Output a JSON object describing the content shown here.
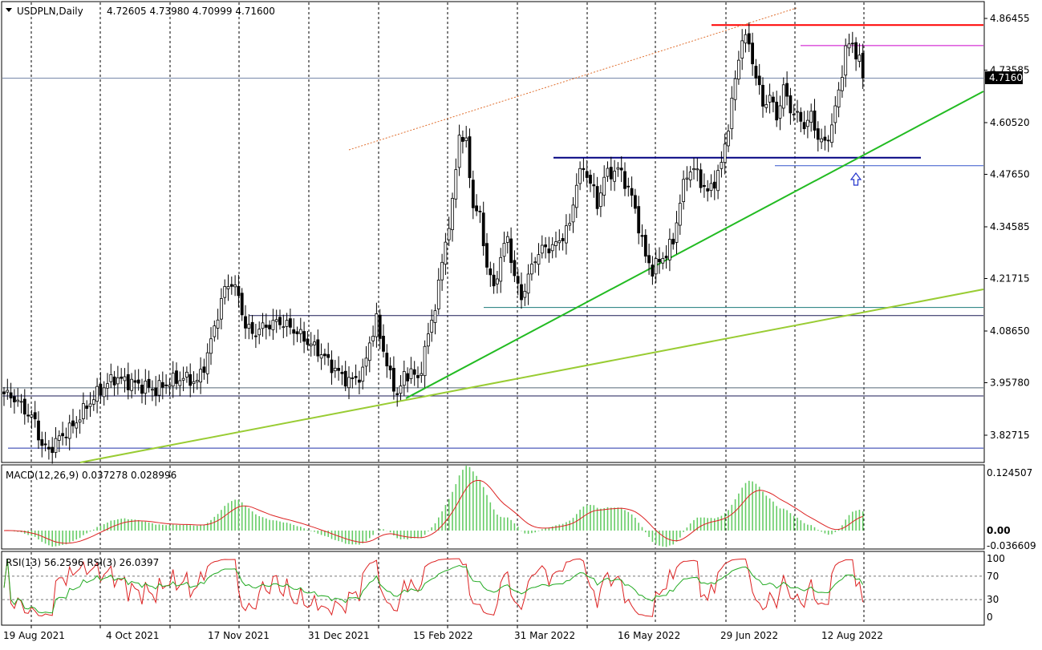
{
  "header": {
    "symbol": "USDPLN,Daily",
    "ohlc": "4.72605 4.73980 4.70999 4.71600"
  },
  "price_axis": {
    "ticks": [
      "4.86455",
      "4.73585",
      "4.60520",
      "4.47650",
      "4.34585",
      "4.21715",
      "4.08650",
      "3.95780",
      "3.82715"
    ],
    "tick_values": [
      4.86455,
      4.73585,
      4.6052,
      4.4765,
      4.34585,
      4.21715,
      4.0865,
      3.9578,
      3.82715
    ],
    "current_price": "4.71600",
    "current_value": 4.716
  },
  "date_axis": {
    "labels": [
      "19 Aug 2021",
      "4 Oct 2021",
      "17 Nov 2021",
      "31 Dec 2021",
      "15 Feb 2022",
      "31 Mar 2022",
      "16 May 2022",
      "29 Jun 2022",
      "12 Aug 2022"
    ]
  },
  "macd": {
    "label": "MACD(12,26,9) 0.037278 0.028996",
    "ticks": [
      "0.124507",
      "0.00",
      "-0.036609"
    ],
    "tick_values": [
      0.124507,
      0.0,
      -0.036609
    ]
  },
  "rsi": {
    "label": "RSI(13) 56.2596  RSI(3) 26.0397",
    "ticks": [
      "100",
      "70",
      "30",
      "0"
    ],
    "tick_values": [
      100,
      70,
      30,
      0
    ]
  },
  "chart_data": {
    "type": "candlestick",
    "symbol": "USDPLN",
    "timeframe": "Daily",
    "ylim": [
      3.76,
      4.89
    ],
    "close_path": [
      [
        0,
        3.93
      ],
      [
        3,
        3.92
      ],
      [
        6,
        3.89
      ],
      [
        9,
        3.86
      ],
      [
        11,
        3.8
      ],
      [
        13,
        3.79
      ],
      [
        16,
        3.82
      ],
      [
        20,
        3.85
      ],
      [
        24,
        3.9
      ],
      [
        28,
        3.94
      ],
      [
        32,
        3.97
      ],
      [
        36,
        3.96
      ],
      [
        40,
        3.95
      ],
      [
        44,
        3.94
      ],
      [
        48,
        3.96
      ],
      [
        52,
        3.97
      ],
      [
        56,
        3.96
      ],
      [
        58,
        4.0
      ],
      [
        60,
        4.06
      ],
      [
        62,
        4.13
      ],
      [
        64,
        4.19
      ],
      [
        66,
        4.21
      ],
      [
        68,
        4.17
      ],
      [
        70,
        4.1
      ],
      [
        72,
        4.08
      ],
      [
        76,
        4.1
      ],
      [
        80,
        4.11
      ],
      [
        84,
        4.09
      ],
      [
        88,
        4.06
      ],
      [
        92,
        4.03
      ],
      [
        96,
        3.99
      ],
      [
        100,
        3.96
      ],
      [
        104,
        3.98
      ],
      [
        106,
        4.06
      ],
      [
        108,
        4.11
      ],
      [
        110,
        4.04
      ],
      [
        112,
        3.97
      ],
      [
        114,
        3.93
      ],
      [
        116,
        3.97
      ],
      [
        118,
        3.99
      ],
      [
        120,
        3.96
      ],
      [
        122,
        4.04
      ],
      [
        124,
        4.11
      ],
      [
        126,
        4.2
      ],
      [
        128,
        4.31
      ],
      [
        130,
        4.4
      ],
      [
        132,
        4.58
      ],
      [
        134,
        4.55
      ],
      [
        136,
        4.4
      ],
      [
        138,
        4.37
      ],
      [
        140,
        4.25
      ],
      [
        142,
        4.19
      ],
      [
        144,
        4.27
      ],
      [
        146,
        4.32
      ],
      [
        148,
        4.22
      ],
      [
        150,
        4.17
      ],
      [
        152,
        4.22
      ],
      [
        154,
        4.27
      ],
      [
        156,
        4.29
      ],
      [
        160,
        4.3
      ],
      [
        164,
        4.35
      ],
      [
        166,
        4.46
      ],
      [
        168,
        4.49
      ],
      [
        170,
        4.46
      ],
      [
        172,
        4.4
      ],
      [
        174,
        4.47
      ],
      [
        178,
        4.49
      ],
      [
        180,
        4.46
      ],
      [
        182,
        4.42
      ],
      [
        184,
        4.35
      ],
      [
        186,
        4.27
      ],
      [
        188,
        4.24
      ],
      [
        190,
        4.26
      ],
      [
        192,
        4.28
      ],
      [
        194,
        4.31
      ],
      [
        196,
        4.41
      ],
      [
        198,
        4.48
      ],
      [
        200,
        4.49
      ],
      [
        202,
        4.46
      ],
      [
        204,
        4.43
      ],
      [
        206,
        4.46
      ],
      [
        208,
        4.5
      ],
      [
        210,
        4.6
      ],
      [
        212,
        4.71
      ],
      [
        214,
        4.82
      ],
      [
        216,
        4.8
      ],
      [
        218,
        4.72
      ],
      [
        220,
        4.65
      ],
      [
        222,
        4.67
      ],
      [
        224,
        4.62
      ],
      [
        226,
        4.69
      ],
      [
        228,
        4.64
      ],
      [
        230,
        4.62
      ],
      [
        232,
        4.6
      ],
      [
        234,
        4.62
      ],
      [
        236,
        4.57
      ],
      [
        238,
        4.55
      ],
      [
        240,
        4.6
      ],
      [
        242,
        4.68
      ],
      [
        244,
        4.79
      ],
      [
        246,
        4.8
      ],
      [
        248,
        4.76
      ],
      [
        249,
        4.716
      ]
    ],
    "horizontal_levels": [
      {
        "name": "red-resistance",
        "value": 4.848,
        "color": "#ff0000"
      },
      {
        "name": "magenta-level",
        "value": 4.797,
        "color": "#cc00cc"
      },
      {
        "name": "navy-support",
        "value": 4.518,
        "color": "#000080"
      },
      {
        "name": "thin-blue-support",
        "value": 4.498,
        "color": "#3355cc"
      },
      {
        "name": "teal-level",
        "value": 4.145,
        "color": "#1a7a7a"
      },
      {
        "name": "black-level",
        "value": 4.125,
        "color": "#1a1a55"
      },
      {
        "name": "gray-level",
        "value": 3.945,
        "color": "#556677"
      },
      {
        "name": "black-low-level",
        "value": 3.925,
        "color": "#1a1a55"
      },
      {
        "name": "blue-bottom-level",
        "value": 3.795,
        "color": "#2233aa"
      }
    ],
    "trendlines": [
      {
        "name": "green-uptrend",
        "color": "#22bb22"
      },
      {
        "name": "yellow-green-uptrend",
        "color": "#99cc33"
      },
      {
        "name": "orange-dotted-channel",
        "color": "#e07030"
      }
    ],
    "annotations": [
      {
        "name": "up-arrow",
        "color": "#2233cc"
      }
    ],
    "colors": {
      "bull": "#ffffff",
      "bear": "#000000",
      "macd_hist": "#66cc66",
      "macd_signal": "#dd2222",
      "rsi13": "#22aa22",
      "rsi3": "#dd2222"
    }
  }
}
